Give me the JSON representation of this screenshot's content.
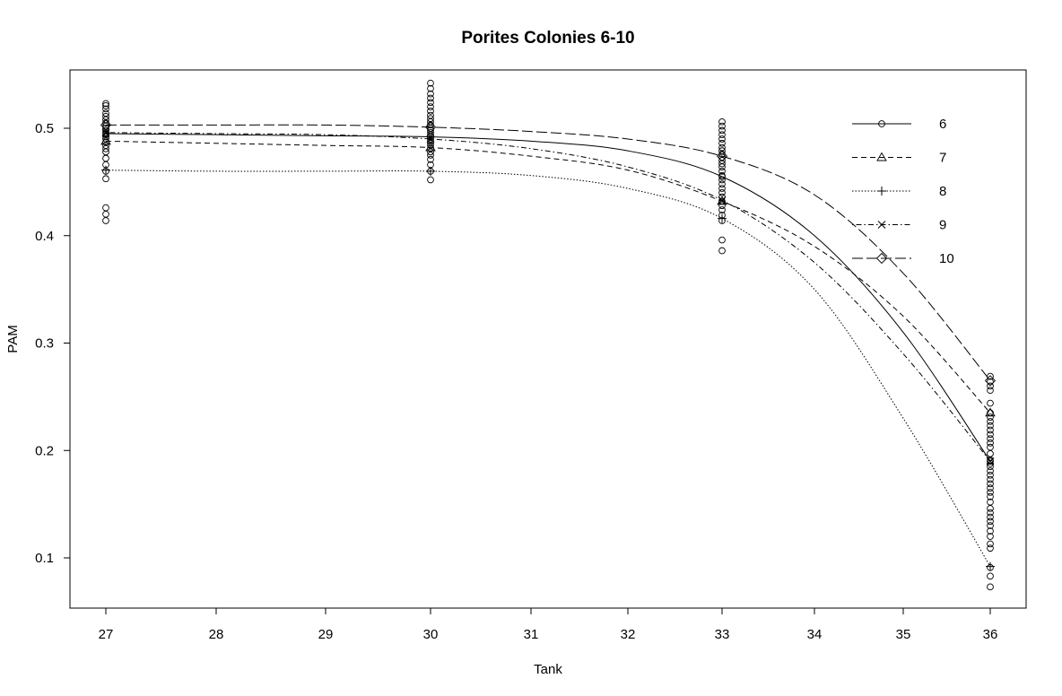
{
  "chart_data": {
    "type": "line",
    "title": "Porites Colonies 6-10",
    "xlabel": "Tank",
    "ylabel": "PAM",
    "xlim": [
      26.7,
      36.35
    ],
    "ylim": [
      0.05,
      0.555
    ],
    "x_ticks": [
      27,
      28,
      29,
      30,
      31,
      32,
      33,
      34,
      35,
      36
    ],
    "y_ticks": [
      0.1,
      0.2,
      0.3,
      0.4,
      0.5
    ],
    "legend": {
      "position": "top-right",
      "entries": [
        "6",
        "7",
        "8",
        "9",
        "10"
      ]
    },
    "grid": false,
    "series": [
      {
        "name": "6",
        "marker": "circle",
        "dash": "",
        "x": [
          27,
          28,
          29,
          30,
          31,
          32,
          33,
          34,
          35,
          36
        ],
        "y": [
          0.495,
          0.494,
          0.493,
          0.492,
          0.488,
          0.479,
          0.455,
          0.4,
          0.31,
          0.19
        ],
        "marker_at": [
          27,
          30,
          33,
          36
        ]
      },
      {
        "name": "7",
        "marker": "triangle",
        "dash": "6,4",
        "x": [
          27,
          28,
          29,
          30,
          31,
          32,
          33,
          34,
          35,
          36
        ],
        "y": [
          0.488,
          0.486,
          0.484,
          0.482,
          0.474,
          0.461,
          0.432,
          0.39,
          0.325,
          0.235
        ],
        "marker_at": [
          27,
          30,
          33,
          36
        ]
      },
      {
        "name": "8",
        "marker": "plus",
        "dash": "1.5,2",
        "x": [
          27,
          28,
          29,
          30,
          31,
          32,
          33,
          34,
          35,
          36
        ],
        "y": [
          0.461,
          0.46,
          0.46,
          0.46,
          0.456,
          0.444,
          0.416,
          0.35,
          0.23,
          0.092
        ],
        "marker_at": [
          27,
          30,
          33,
          36
        ]
      },
      {
        "name": "9",
        "marker": "cross",
        "dash": "1.5,3,6,3",
        "x": [
          27,
          28,
          29,
          30,
          31,
          32,
          33,
          34,
          35,
          36
        ],
        "y": [
          0.496,
          0.495,
          0.494,
          0.49,
          0.481,
          0.464,
          0.433,
          0.375,
          0.29,
          0.19
        ],
        "marker_at": [
          27,
          30,
          33,
          36
        ]
      },
      {
        "name": "10",
        "marker": "diamond",
        "dash": "12,4",
        "x": [
          27,
          28,
          29,
          30,
          31,
          32,
          33,
          34,
          35,
          36
        ],
        "y": [
          0.503,
          0.503,
          0.503,
          0.501,
          0.497,
          0.49,
          0.474,
          0.438,
          0.365,
          0.265
        ],
        "marker_at": [
          27,
          30,
          33,
          36
        ]
      }
    ],
    "scatter": {
      "marker": "circle",
      "points": [
        {
          "x": 27,
          "y": [
            0.414,
            0.42,
            0.426,
            0.453,
            0.46,
            0.466,
            0.472,
            0.478,
            0.481,
            0.484,
            0.487,
            0.49,
            0.492,
            0.494,
            0.496,
            0.498,
            0.5,
            0.502,
            0.505,
            0.508,
            0.511,
            0.514,
            0.518,
            0.521,
            0.523
          ]
        },
        {
          "x": 30,
          "y": [
            0.452,
            0.46,
            0.466,
            0.471,
            0.475,
            0.478,
            0.481,
            0.484,
            0.486,
            0.488,
            0.49,
            0.492,
            0.494,
            0.496,
            0.498,
            0.5,
            0.503,
            0.506,
            0.509,
            0.512,
            0.516,
            0.52,
            0.524,
            0.528,
            0.532,
            0.537,
            0.542
          ]
        },
        {
          "x": 33,
          "y": [
            0.386,
            0.396,
            0.414,
            0.419,
            0.424,
            0.428,
            0.432,
            0.436,
            0.44,
            0.444,
            0.448,
            0.452,
            0.456,
            0.46,
            0.464,
            0.467,
            0.47,
            0.473,
            0.476,
            0.479,
            0.482,
            0.486,
            0.49,
            0.494,
            0.498,
            0.502,
            0.506
          ]
        },
        {
          "x": 36,
          "y": [
            0.073,
            0.083,
            0.091,
            0.109,
            0.113,
            0.12,
            0.125,
            0.13,
            0.134,
            0.138,
            0.142,
            0.146,
            0.152,
            0.157,
            0.161,
            0.165,
            0.169,
            0.173,
            0.177,
            0.181,
            0.185,
            0.188,
            0.191,
            0.197,
            0.203,
            0.207,
            0.211,
            0.215,
            0.219,
            0.223,
            0.227,
            0.231,
            0.235,
            0.244,
            0.256,
            0.26,
            0.264,
            0.269
          ]
        }
      ]
    }
  }
}
